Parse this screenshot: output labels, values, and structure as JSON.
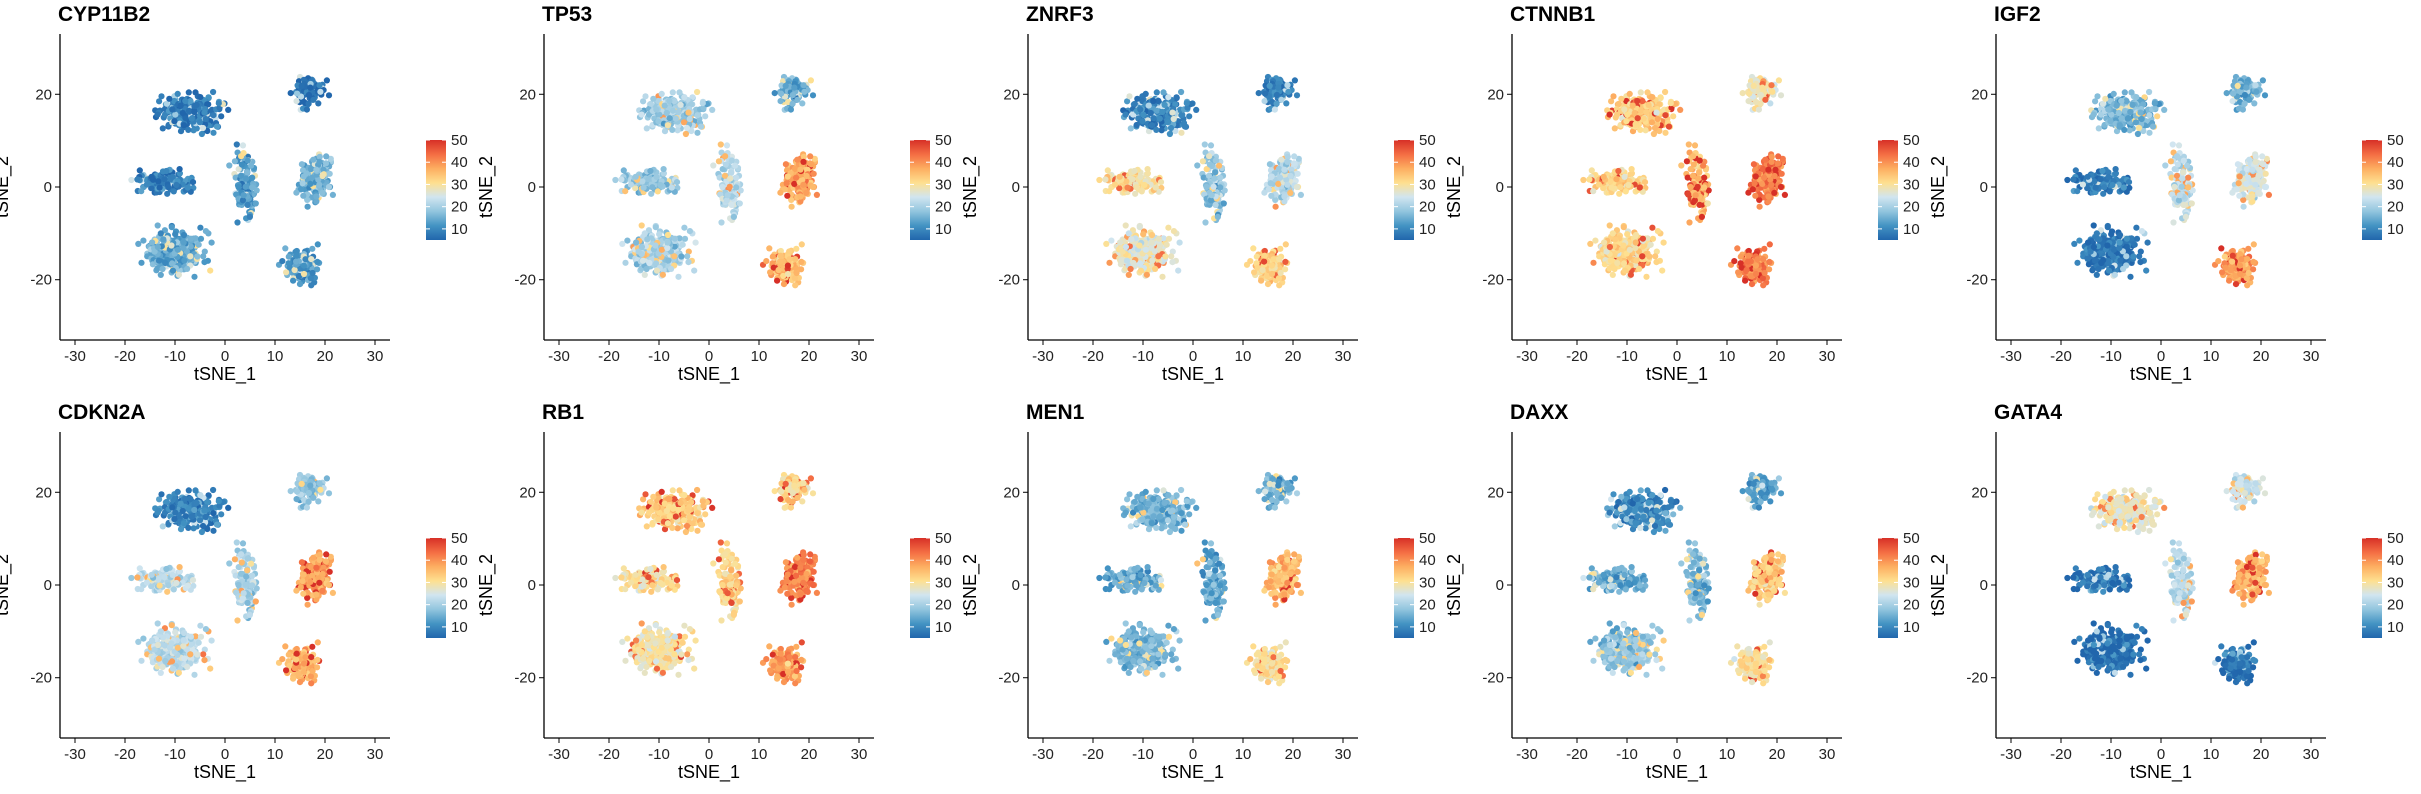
{
  "figure": {
    "layout": {
      "rows": 2,
      "cols": 5
    }
  },
  "colors": {
    "scale": [
      "#2166ac",
      "#4393c3",
      "#92c5de",
      "#d1e5f0",
      "#fee090",
      "#fdae61",
      "#f46d43",
      "#d73027"
    ],
    "low": "#1f78b4",
    "high": "#e31a1c"
  },
  "chart_data": [
    {
      "type": "scatter",
      "title": "CYP11B2",
      "xlabel": "tSNE_1",
      "ylabel": "tSNE_2",
      "xlim": [
        -33,
        33
      ],
      "ylim": [
        -33,
        33
      ],
      "xticks": [
        -30,
        -20,
        -10,
        0,
        10,
        20,
        30
      ],
      "yticks": [
        -20,
        0,
        20
      ],
      "legend": {
        "ticks": [
          10,
          20,
          30,
          40,
          50
        ],
        "range": [
          5,
          50
        ],
        "placement": "right"
      },
      "cluster_levels": {
        "top_left": 8,
        "top_right": 6,
        "mid_left": 9,
        "bottom_left": 14,
        "center": 12,
        "right": 15,
        "bottom_right": 12
      }
    },
    {
      "type": "scatter",
      "title": "TP53",
      "xlabel": "tSNE_1",
      "ylabel": "tSNE_2",
      "xlim": [
        -33,
        33
      ],
      "ylim": [
        -33,
        33
      ],
      "xticks": [
        -30,
        -20,
        -10,
        0,
        10,
        20,
        30
      ],
      "yticks": [
        -20,
        0,
        20
      ],
      "legend": {
        "ticks": [
          10,
          20,
          30,
          40,
          50
        ],
        "range": [
          5,
          50
        ],
        "placement": "right"
      },
      "cluster_levels": {
        "top_left": 20,
        "top_right": 14,
        "mid_left": 18,
        "bottom_left": 20,
        "center": 22,
        "right": 38,
        "bottom_right": 35
      }
    },
    {
      "type": "scatter",
      "title": "ZNRF3",
      "xlabel": "tSNE_1",
      "ylabel": "tSNE_2",
      "xlim": [
        -33,
        33
      ],
      "ylim": [
        -33,
        33
      ],
      "xticks": [
        -30,
        -20,
        -10,
        0,
        10,
        20,
        30
      ],
      "yticks": [
        -20,
        0,
        20
      ],
      "legend": {
        "ticks": [
          10,
          20,
          30,
          40,
          50
        ],
        "range": [
          5,
          50
        ],
        "placement": "right"
      },
      "cluster_levels": {
        "top_left": 9,
        "top_right": 9,
        "mid_left": 30,
        "bottom_left": 27,
        "center": 18,
        "right": 22,
        "bottom_right": 32
      }
    },
    {
      "type": "scatter",
      "title": "CTNNB1",
      "xlabel": "tSNE_1",
      "ylabel": "tSNE_2",
      "xlim": [
        -33,
        33
      ],
      "ylim": [
        -33,
        33
      ],
      "xticks": [
        -30,
        -20,
        -10,
        0,
        10,
        20,
        30
      ],
      "yticks": [
        -20,
        0,
        20
      ],
      "legend": {
        "ticks": [
          10,
          20,
          30,
          40,
          50
        ],
        "range": [
          5,
          50
        ],
        "placement": "right"
      },
      "cluster_levels": {
        "top_left": 33,
        "top_right": 28,
        "mid_left": 32,
        "bottom_left": 31,
        "center": 36,
        "right": 42,
        "bottom_right": 40
      }
    },
    {
      "type": "scatter",
      "title": "IGF2",
      "xlabel": "tSNE_1",
      "ylabel": "tSNE_2",
      "xlim": [
        -33,
        33
      ],
      "ylim": [
        -33,
        33
      ],
      "xticks": [
        -30,
        -20,
        -10,
        0,
        10,
        20,
        30
      ],
      "yticks": [
        -20,
        0,
        20
      ],
      "legend": {
        "ticks": [
          10,
          20,
          30,
          40,
          50
        ],
        "range": [
          5,
          50
        ],
        "placement": "right"
      },
      "cluster_levels": {
        "top_left": 16,
        "top_right": 15,
        "mid_left": 8,
        "bottom_left": 7,
        "center": 22,
        "right": 25,
        "bottom_right": 38
      }
    },
    {
      "type": "scatter",
      "title": "CDKN2A",
      "xlabel": "tSNE_1",
      "ylabel": "tSNE_2",
      "xlim": [
        -33,
        33
      ],
      "ylim": [
        -33,
        33
      ],
      "xticks": [
        -30,
        -20,
        -10,
        0,
        10,
        20,
        30
      ],
      "yticks": [
        -20,
        0,
        20
      ],
      "legend": {
        "ticks": [
          10,
          20,
          30,
          40,
          50
        ],
        "range": [
          5,
          50
        ],
        "placement": "right"
      },
      "cluster_levels": {
        "top_left": 9,
        "top_right": 18,
        "mid_left": 22,
        "bottom_left": 22,
        "center": 20,
        "right": 38,
        "bottom_right": 36
      }
    },
    {
      "type": "scatter",
      "title": "RB1",
      "xlabel": "tSNE_1",
      "ylabel": "tSNE_2",
      "xlim": [
        -33,
        33
      ],
      "ylim": [
        -33,
        33
      ],
      "xticks": [
        -30,
        -20,
        -10,
        0,
        10,
        20,
        30
      ],
      "yticks": [
        -20,
        0,
        20
      ],
      "legend": {
        "ticks": [
          10,
          20,
          30,
          40,
          50
        ],
        "range": [
          5,
          50
        ],
        "placement": "right"
      },
      "cluster_levels": {
        "top_left": 33,
        "top_right": 32,
        "mid_left": 30,
        "bottom_left": 29,
        "center": 32,
        "right": 41,
        "bottom_right": 38
      }
    },
    {
      "type": "scatter",
      "title": "MEN1",
      "xlabel": "tSNE_1",
      "ylabel": "tSNE_2",
      "xlim": [
        -33,
        33
      ],
      "ylim": [
        -33,
        33
      ],
      "xticks": [
        -30,
        -20,
        -10,
        0,
        10,
        20,
        30
      ],
      "yticks": [
        -20,
        0,
        20
      ],
      "legend": {
        "ticks": [
          10,
          20,
          30,
          40,
          50
        ],
        "range": [
          5,
          50
        ],
        "placement": "right"
      },
      "cluster_levels": {
        "top_left": 16,
        "top_right": 15,
        "mid_left": 14,
        "bottom_left": 16,
        "center": 14,
        "right": 36,
        "bottom_right": 30
      }
    },
    {
      "type": "scatter",
      "title": "DAXX",
      "xlabel": "tSNE_1",
      "ylabel": "tSNE_2",
      "xlim": [
        -33,
        33
      ],
      "ylim": [
        -33,
        33
      ],
      "xticks": [
        -30,
        -20,
        -10,
        0,
        10,
        20,
        30
      ],
      "yticks": [
        -20,
        0,
        20
      ],
      "legend": {
        "ticks": [
          10,
          20,
          30,
          40,
          50
        ],
        "range": [
          5,
          50
        ],
        "placement": "right"
      },
      "cluster_levels": {
        "top_left": 10,
        "top_right": 13,
        "mid_left": 14,
        "bottom_left": 18,
        "center": 16,
        "right": 33,
        "bottom_right": 30
      }
    },
    {
      "type": "scatter",
      "title": "GATA4",
      "xlabel": "tSNE_1",
      "ylabel": "tSNE_2",
      "xlim": [
        -33,
        33
      ],
      "ylim": [
        -33,
        33
      ],
      "xticks": [
        -30,
        -20,
        -10,
        0,
        10,
        20,
        30
      ],
      "yticks": [
        -20,
        0,
        20
      ],
      "legend": {
        "ticks": [
          10,
          20,
          30,
          40,
          50
        ],
        "range": [
          5,
          50
        ],
        "placement": "right"
      },
      "cluster_levels": {
        "top_left": 28,
        "top_right": 24,
        "mid_left": 7,
        "bottom_left": 6,
        "center": 22,
        "right": 36,
        "bottom_right": 7
      }
    }
  ]
}
